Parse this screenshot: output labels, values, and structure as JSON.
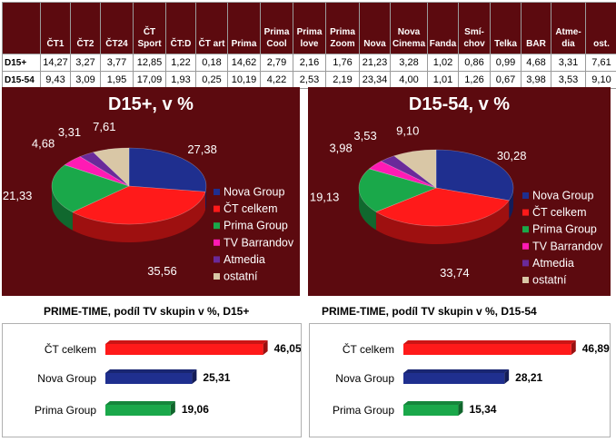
{
  "table": {
    "headers": [
      {
        "l1": "",
        "l2": ""
      },
      {
        "l1": "",
        "l2": "ČT1"
      },
      {
        "l1": "",
        "l2": "ČT2"
      },
      {
        "l1": "",
        "l2": "ČT24"
      },
      {
        "l1": "ČT",
        "l2": "Sport"
      },
      {
        "l1": "",
        "l2": "ČT:D"
      },
      {
        "l1": "",
        "l2": "ČT art"
      },
      {
        "l1": "",
        "l2": "Prima"
      },
      {
        "l1": "Prima",
        "l2": "Cool"
      },
      {
        "l1": "Prima",
        "l2": "love"
      },
      {
        "l1": "Prima",
        "l2": "Zoom"
      },
      {
        "l1": "",
        "l2": "Nova"
      },
      {
        "l1": "Nova",
        "l2": "Cinema"
      },
      {
        "l1": "",
        "l2": "Fanda"
      },
      {
        "l1": "Smí-",
        "l2": "chov"
      },
      {
        "l1": "",
        "l2": "Telka"
      },
      {
        "l1": "",
        "l2": "BAR"
      },
      {
        "l1": "Atme-",
        "l2": "dia"
      },
      {
        "l1": "",
        "l2": "ost."
      }
    ],
    "rows": [
      {
        "label": "D15+",
        "values": [
          "14,27",
          "3,27",
          "3,77",
          "12,85",
          "1,22",
          "0,18",
          "14,62",
          "2,79",
          "2,16",
          "1,76",
          "21,23",
          "3,28",
          "1,02",
          "0,86",
          "0,99",
          "4,68",
          "3,31",
          "7,61"
        ]
      },
      {
        "label": "D15-54",
        "values": [
          "9,43",
          "3,09",
          "1,95",
          "17,09",
          "1,93",
          "0,25",
          "10,19",
          "4,22",
          "2,53",
          "2,19",
          "23,34",
          "4,00",
          "1,01",
          "1,26",
          "0,67",
          "3,98",
          "3,53",
          "9,10"
        ]
      }
    ]
  },
  "chart_data": [
    {
      "type": "pie",
      "title": "D15+, v %",
      "legend": "right",
      "slices": [
        {
          "name": "Nova Group",
          "value": 27.38,
          "label": "27,38",
          "color": "#1f2f8f"
        },
        {
          "name": "ČT celkem",
          "value": 35.56,
          "label": "35,56",
          "color": "#ff1a1a"
        },
        {
          "name": "Prima Group",
          "value": 21.33,
          "label": "21,33",
          "color": "#1aa84a"
        },
        {
          "name": "TV Barrandov",
          "value": 4.68,
          "label": "4,68",
          "color": "#ff1ab4"
        },
        {
          "name": "Atmedia",
          "value": 3.31,
          "label": "3,31",
          "color": "#6a2a9a"
        },
        {
          "name": "ostatní",
          "value": 7.61,
          "label": "7,61",
          "color": "#d9c7a6"
        }
      ]
    },
    {
      "type": "pie",
      "title": "D15-54, v %",
      "legend": "right",
      "slices": [
        {
          "name": "Nova Group",
          "value": 30.28,
          "label": "30,28",
          "color": "#1f2f8f"
        },
        {
          "name": "ČT celkem",
          "value": 33.74,
          "label": "33,74",
          "color": "#ff1a1a"
        },
        {
          "name": "Prima Group",
          "value": 19.13,
          "label": "19,13",
          "color": "#1aa84a"
        },
        {
          "name": "TV Barrandov",
          "value": 3.98,
          "label": "3,98",
          "color": "#ff1ab4"
        },
        {
          "name": "Atmedia",
          "value": 3.53,
          "label": "3,53",
          "color": "#6a2a9a"
        },
        {
          "name": "ostatní",
          "value": 9.1,
          "label": "9,10",
          "color": "#d9c7a6"
        }
      ]
    },
    {
      "type": "bar",
      "orientation": "horizontal",
      "title": "PRIME-TIME, podíl TV skupin v %, D15+",
      "categories": [
        "ČT celkem",
        "Nova Group",
        "Prima Group"
      ],
      "values": [
        46.05,
        25.31,
        19.06
      ],
      "labels": [
        "46,05",
        "25,31",
        "19,06"
      ],
      "colors": [
        "#ff1a1a",
        "#1f2f8f",
        "#1aa84a"
      ],
      "xlim": [
        0,
        50
      ]
    },
    {
      "type": "bar",
      "orientation": "horizontal",
      "title": "PRIME-TIME, podíl TV skupin v %, D15-54",
      "categories": [
        "ČT celkem",
        "Nova Group",
        "Prima Group"
      ],
      "values": [
        46.89,
        28.21,
        15.34
      ],
      "labels": [
        "46,89",
        "28,21",
        "15,34"
      ],
      "colors": [
        "#ff1a1a",
        "#1f2f8f",
        "#1aa84a"
      ],
      "xlim": [
        0,
        50
      ]
    }
  ]
}
